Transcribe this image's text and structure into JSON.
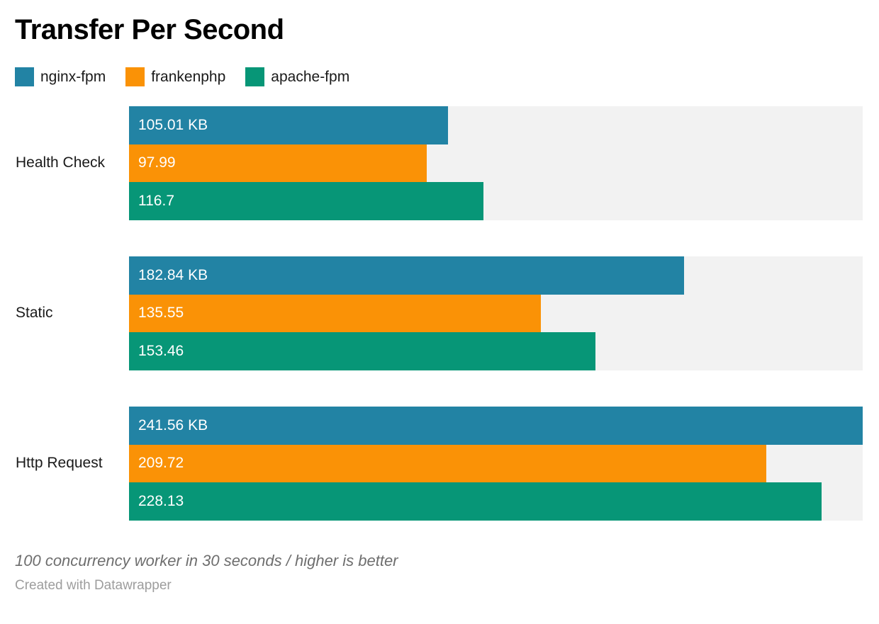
{
  "header": {
    "title": "Transfer Per Second"
  },
  "legend": {
    "items": [
      {
        "label": "nginx-fpm",
        "color": "#2283a4"
      },
      {
        "label": "frankenphp",
        "color": "#fa9206"
      },
      {
        "label": "apache-fpm",
        "color": "#079677"
      }
    ]
  },
  "chart_data": {
    "type": "bar",
    "orientation": "horizontal",
    "title": "Transfer Per Second",
    "categories": [
      "Health Check",
      "Static",
      "Http Request"
    ],
    "series": [
      {
        "name": "nginx-fpm",
        "color": "#2283a4",
        "values": [
          105.01,
          182.84,
          241.56
        ],
        "labels": [
          "105.01 KB",
          "182.84 KB",
          "241.56 KB"
        ]
      },
      {
        "name": "frankenphp",
        "color": "#fa9206",
        "values": [
          97.99,
          135.55,
          209.72
        ],
        "labels": [
          "97.99",
          "135.55",
          "209.72"
        ]
      },
      {
        "name": "apache-fpm",
        "color": "#079677",
        "values": [
          116.7,
          153.46,
          228.13
        ],
        "labels": [
          "116.7",
          "153.46",
          "228.13"
        ]
      }
    ],
    "xlim": [
      0,
      241.56
    ],
    "unit": "KB",
    "track_color": "#f2f2f2",
    "grid": false,
    "legend_position": "top",
    "value_labels_inside_bars": true
  },
  "footer": {
    "note": "100 concurrency worker in 30 seconds / higher is better",
    "credit": "Created with Datawrapper"
  }
}
